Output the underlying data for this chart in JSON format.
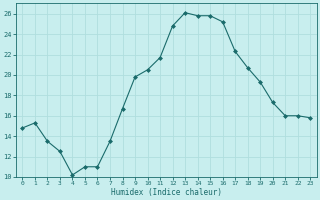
{
  "x": [
    0,
    1,
    2,
    3,
    4,
    5,
    6,
    7,
    8,
    9,
    10,
    11,
    12,
    13,
    14,
    15,
    16,
    17,
    18,
    19,
    20,
    21,
    22,
    23
  ],
  "y": [
    14.8,
    15.3,
    13.5,
    12.5,
    10.2,
    11.0,
    11.0,
    13.5,
    16.7,
    19.8,
    20.5,
    21.7,
    24.8,
    26.1,
    25.8,
    25.8,
    25.2,
    22.3,
    20.7,
    19.3,
    17.3,
    16.0,
    16.0,
    15.8
  ],
  "xlabel": "Humidex (Indice chaleur)",
  "ylabel": "",
  "bg_color": "#c8eeee",
  "grid_color": "#b0dede",
  "line_color": "#1a6b6b",
  "marker_color": "#1a6b6b",
  "ylim": [
    10,
    27
  ],
  "xlim": [
    -0.5,
    23.5
  ],
  "yticks": [
    10,
    12,
    14,
    16,
    18,
    20,
    22,
    24,
    26
  ],
  "xticks": [
    0,
    1,
    2,
    3,
    4,
    5,
    6,
    7,
    8,
    9,
    10,
    11,
    12,
    13,
    14,
    15,
    16,
    17,
    18,
    19,
    20,
    21,
    22,
    23
  ]
}
